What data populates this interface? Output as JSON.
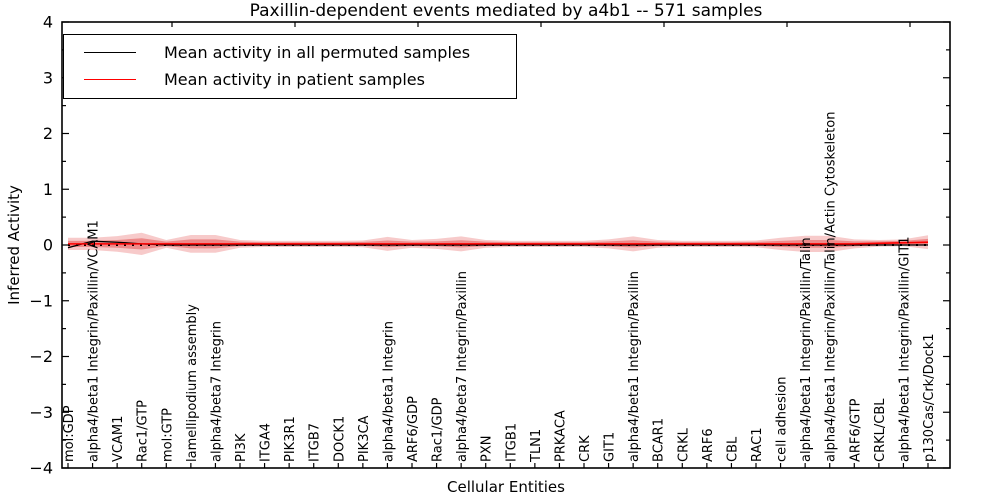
{
  "chart_data": {
    "type": "line",
    "title": "Paxillin-dependent events mediated by a4b1 -- 571 samples",
    "xlabel": "Cellular Entities",
    "ylabel": "Inferred Activity",
    "ylim": [
      -4,
      4
    ],
    "grid": false,
    "legend_position": "upper left",
    "y_tick_labels": [
      "4",
      "3",
      "2",
      "1",
      "0",
      "−1",
      "−2",
      "−3",
      "−4"
    ],
    "categories": [
      "mol:GDP",
      "alpha4/beta1 Integrin/Paxillin/VCAM1",
      "VCAM1",
      "Rac1/GTP",
      "mol:GTP",
      "lamellipodium assembly",
      "alpha4/beta7 Integrin",
      "PI3K",
      "ITGA4",
      "PIK3R1",
      "ITGB7",
      "DOCK1",
      "PIK3CA",
      "alpha4/beta1 Integrin",
      "ARF6/GDP",
      "Rac1/GDP",
      "alpha4/beta7 Integrin/Paxillin",
      "PXN",
      "ITGB1",
      "TLN1",
      "PRKACA",
      "CRK",
      "GIT1",
      "alpha4/beta1 Integrin/Paxillin",
      "BCAR1",
      "CRKL",
      "ARF6",
      "CBL",
      "RAC1",
      "cell adhesion",
      "alpha4/beta1 Integrin/Paxillin/Talin",
      "alpha4/beta1 Integrin/Paxillin/Talin/Actin Cytoskeleton",
      "ARF6/GTP",
      "CRKL/CBL",
      "alpha4/beta1 Integrin/Paxillin/GIT1",
      "p130Cas/Crk/Dock1"
    ],
    "series": [
      {
        "name": "Mean activity in all permuted samples",
        "color": "#000000",
        "values": [
          -0.05,
          0.07,
          0.05,
          0.02,
          0,
          0,
          0,
          0,
          0,
          0,
          0,
          0,
          0,
          0,
          0,
          0,
          0,
          0,
          0,
          0,
          0,
          0,
          0,
          0,
          0,
          0,
          0,
          0,
          0,
          0,
          0,
          0,
          0,
          0,
          0,
          0
        ]
      },
      {
        "name": "Mean activity in patient samples",
        "color": "#ff0000",
        "values": [
          0.02,
          0.02,
          0.02,
          0.02,
          0.02,
          0.02,
          0.02,
          0.02,
          0.02,
          0.02,
          0.02,
          0.02,
          0.02,
          0.02,
          0.02,
          0.02,
          0.02,
          0.02,
          0.02,
          0.02,
          0.02,
          0.02,
          0.02,
          0.02,
          0.02,
          0.02,
          0.02,
          0.02,
          0.02,
          0.02,
          0.02,
          0.02,
          0.02,
          0.03,
          0.04,
          0.05
        ],
        "band_outer_halfwidth": [
          0.11,
          0.11,
          0.14,
          0.2,
          0.07,
          0.16,
          0.16,
          0.07,
          0.055,
          0.055,
          0.055,
          0.055,
          0.06,
          0.125,
          0.07,
          0.09,
          0.135,
          0.07,
          0.055,
          0.055,
          0.055,
          0.055,
          0.08,
          0.135,
          0.07,
          0.055,
          0.055,
          0.055,
          0.06,
          0.11,
          0.145,
          0.145,
          0.08,
          0.06,
          0.06,
          0.125
        ],
        "band_inner_halfwidth": [
          0.055,
          0.055,
          0.07,
          0.1,
          0.04,
          0.08,
          0.08,
          0.04,
          0.03,
          0.03,
          0.03,
          0.03,
          0.035,
          0.06,
          0.04,
          0.045,
          0.065,
          0.04,
          0.03,
          0.03,
          0.03,
          0.03,
          0.045,
          0.065,
          0.04,
          0.03,
          0.03,
          0.03,
          0.035,
          0.055,
          0.07,
          0.07,
          0.045,
          0.035,
          0.035,
          0.06
        ]
      }
    ],
    "zero_reference_line": {
      "style": "dotted",
      "color": "#000000",
      "y": 0
    },
    "band_color": "#e03c3c",
    "axis_color": "#000000",
    "background_color": "#ffffff"
  }
}
